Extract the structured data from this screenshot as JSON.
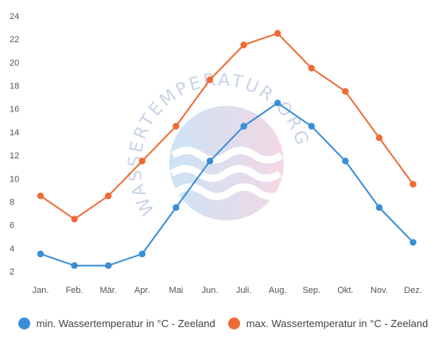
{
  "chart_data": {
    "type": "line",
    "categories": [
      "Jan.",
      "Feb.",
      "Mär.",
      "Apr.",
      "Mai",
      "Jun.",
      "Juli.",
      "Aug.",
      "Sep.",
      "Okt.",
      "Nov.",
      "Dez."
    ],
    "yticks": [
      "2",
      "4",
      "6",
      "8",
      "10",
      "12",
      "14",
      "16",
      "18",
      "20",
      "22",
      "24"
    ],
    "ylim": [
      2,
      24
    ],
    "grid": false,
    "legend_position": "bottom",
    "series": [
      {
        "name": "min. Wassertemperatur in °C - Zeeland",
        "color": "#3a8ed6",
        "values": [
          3.5,
          2.5,
          2.5,
          3.5,
          7.5,
          11.5,
          14.5,
          16.5,
          14.5,
          11.5,
          7.5,
          4.5
        ]
      },
      {
        "name": "max. Wassertemperatur in °C - Zeeland",
        "color": "#ef6b35",
        "values": [
          8.5,
          6.5,
          8.5,
          11.5,
          14.5,
          18.5,
          21.5,
          22.5,
          19.5,
          17.5,
          13.5,
          9.5
        ]
      }
    ]
  },
  "watermark": {
    "text": "WASSERTEMPERATUR.ORG"
  }
}
